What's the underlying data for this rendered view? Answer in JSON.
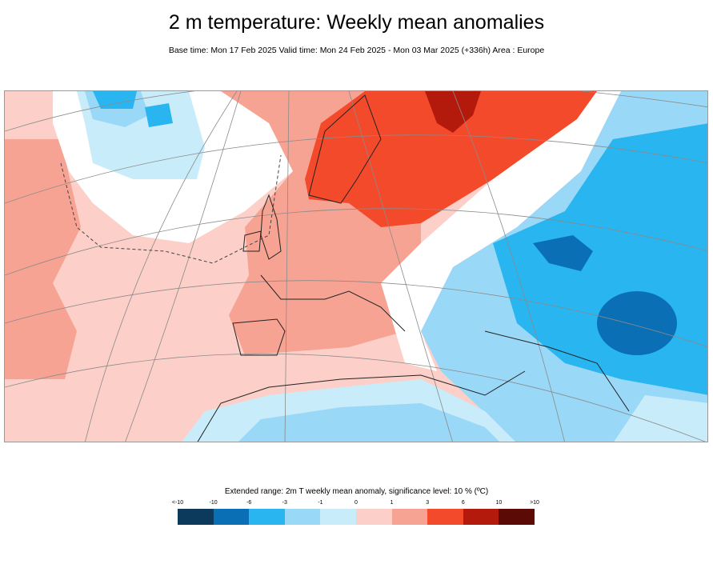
{
  "title": "2 m temperature: Weekly mean anomalies",
  "subtitle": "Base time: Mon 17 Feb 2025 Valid time: Mon 24 Feb 2025 - Mon 03 Mar 2025 (+336h) Area : Europe",
  "map": {
    "area": "Europe"
  },
  "legend": {
    "title": "Extended range: 2m T weekly mean anomaly, significance level: 10 % (ºC)",
    "labels": [
      "<-10",
      "-10",
      "-6",
      "-3",
      "-1",
      "0",
      "1",
      "3",
      "6",
      "10",
      ">10"
    ],
    "colors": [
      "#0b3a5c",
      "#0a6fb5",
      "#29b5f0",
      "#9ad8f7",
      "#c9ecfb",
      "#fcd0c8",
      "#f7a393",
      "#f44a2c",
      "#b31a0b",
      "#5b0a06"
    ]
  }
}
